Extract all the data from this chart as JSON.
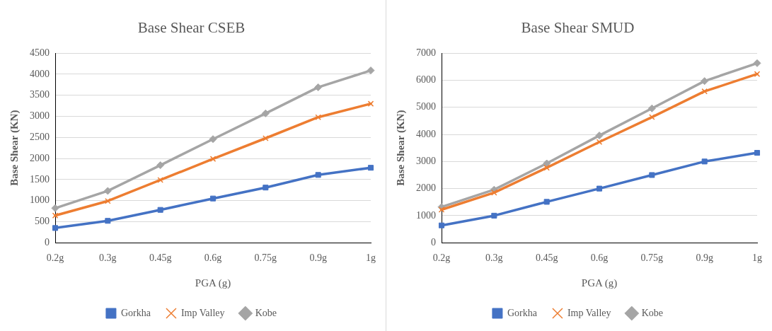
{
  "chart_data": [
    {
      "type": "line",
      "title": "Base Shear CSEB",
      "xlabel": "PGA (g)",
      "ylabel": "Base Shear (KN)",
      "categories": [
        "0.2g",
        "0.3g",
        "0.45g",
        "0.6g",
        "0.75g",
        "0.9g",
        "1g"
      ],
      "series": [
        {
          "name": "Gorkha",
          "color": "#4472c4",
          "marker": "square",
          "values": [
            350,
            520,
            780,
            1050,
            1310,
            1610,
            1780
          ]
        },
        {
          "name": "Imp Valley",
          "color": "#ed7d31",
          "marker": "cross",
          "values": [
            645,
            990,
            1490,
            1990,
            2480,
            2980,
            3300
          ]
        },
        {
          "name": "Kobe",
          "color": "#a5a5a5",
          "marker": "diamond",
          "values": [
            820,
            1230,
            1840,
            2460,
            3070,
            3690,
            4090
          ]
        }
      ],
      "ylim": [
        0,
        4500
      ],
      "yticks": [
        0,
        500,
        1000,
        1500,
        2000,
        2500,
        3000,
        3500,
        4000,
        4500
      ],
      "grid": "y",
      "legend": "bottom",
      "line_style": "solid"
    },
    {
      "type": "line",
      "title": "Base Shear SMUD",
      "xlabel": "PGA (g)",
      "ylabel": "Base Shear (KN)",
      "categories": [
        "0.2g",
        "0.3g",
        "0.45g",
        "0.6g",
        "0.75g",
        "0.9g",
        "1g"
      ],
      "series": [
        {
          "name": "Gorkha",
          "color": "#4472c4",
          "marker": "square",
          "values": [
            640,
            1000,
            1510,
            2000,
            2500,
            3000,
            3320
          ]
        },
        {
          "name": "Imp Valley",
          "color": "#ed7d31",
          "marker": "cross",
          "values": [
            1220,
            1850,
            2770,
            3720,
            4640,
            5590,
            6230
          ]
        },
        {
          "name": "Kobe",
          "color": "#a5a5a5",
          "marker": "diamond",
          "values": [
            1320,
            1960,
            2930,
            3960,
            4960,
            5970,
            6630
          ]
        }
      ],
      "ylim": [
        0,
        7000
      ],
      "yticks": [
        0,
        1000,
        2000,
        3000,
        4000,
        5000,
        6000,
        7000
      ],
      "grid": "y",
      "legend": "bottom",
      "line_style": "solid"
    }
  ]
}
